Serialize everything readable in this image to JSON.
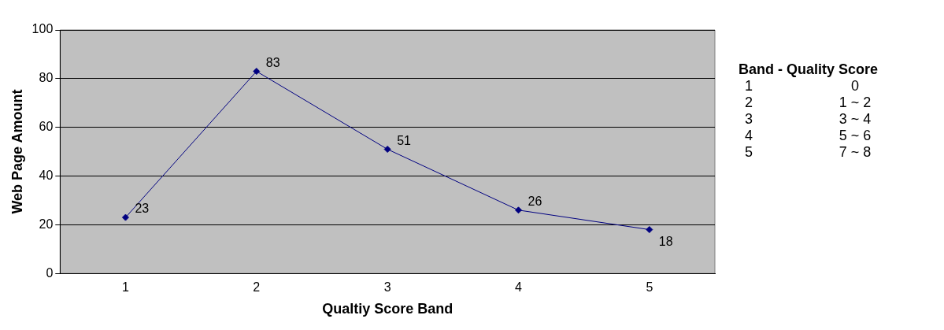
{
  "chart_data": {
    "type": "line",
    "xlabel": "Qualtiy Score Band",
    "ylabel": "Web Page Amount",
    "categories": [
      "1",
      "2",
      "3",
      "4",
      "5"
    ],
    "series": [
      {
        "color": "#000080",
        "values": [
          23,
          83,
          51,
          26,
          18
        ]
      }
    ],
    "ylim": [
      0,
      100
    ],
    "yticks": [
      0,
      20,
      40,
      60,
      80,
      100
    ],
    "grid": "y",
    "legend": false,
    "marker": "diamond",
    "line_style": "solid",
    "data_labels": true,
    "annotations": [
      "Band - Quality Score",
      "1 0",
      "2 1 ~ 2",
      "3 3 ~ 4",
      "4 5 ~ 6",
      "5 7 ~ 8"
    ]
  }
}
